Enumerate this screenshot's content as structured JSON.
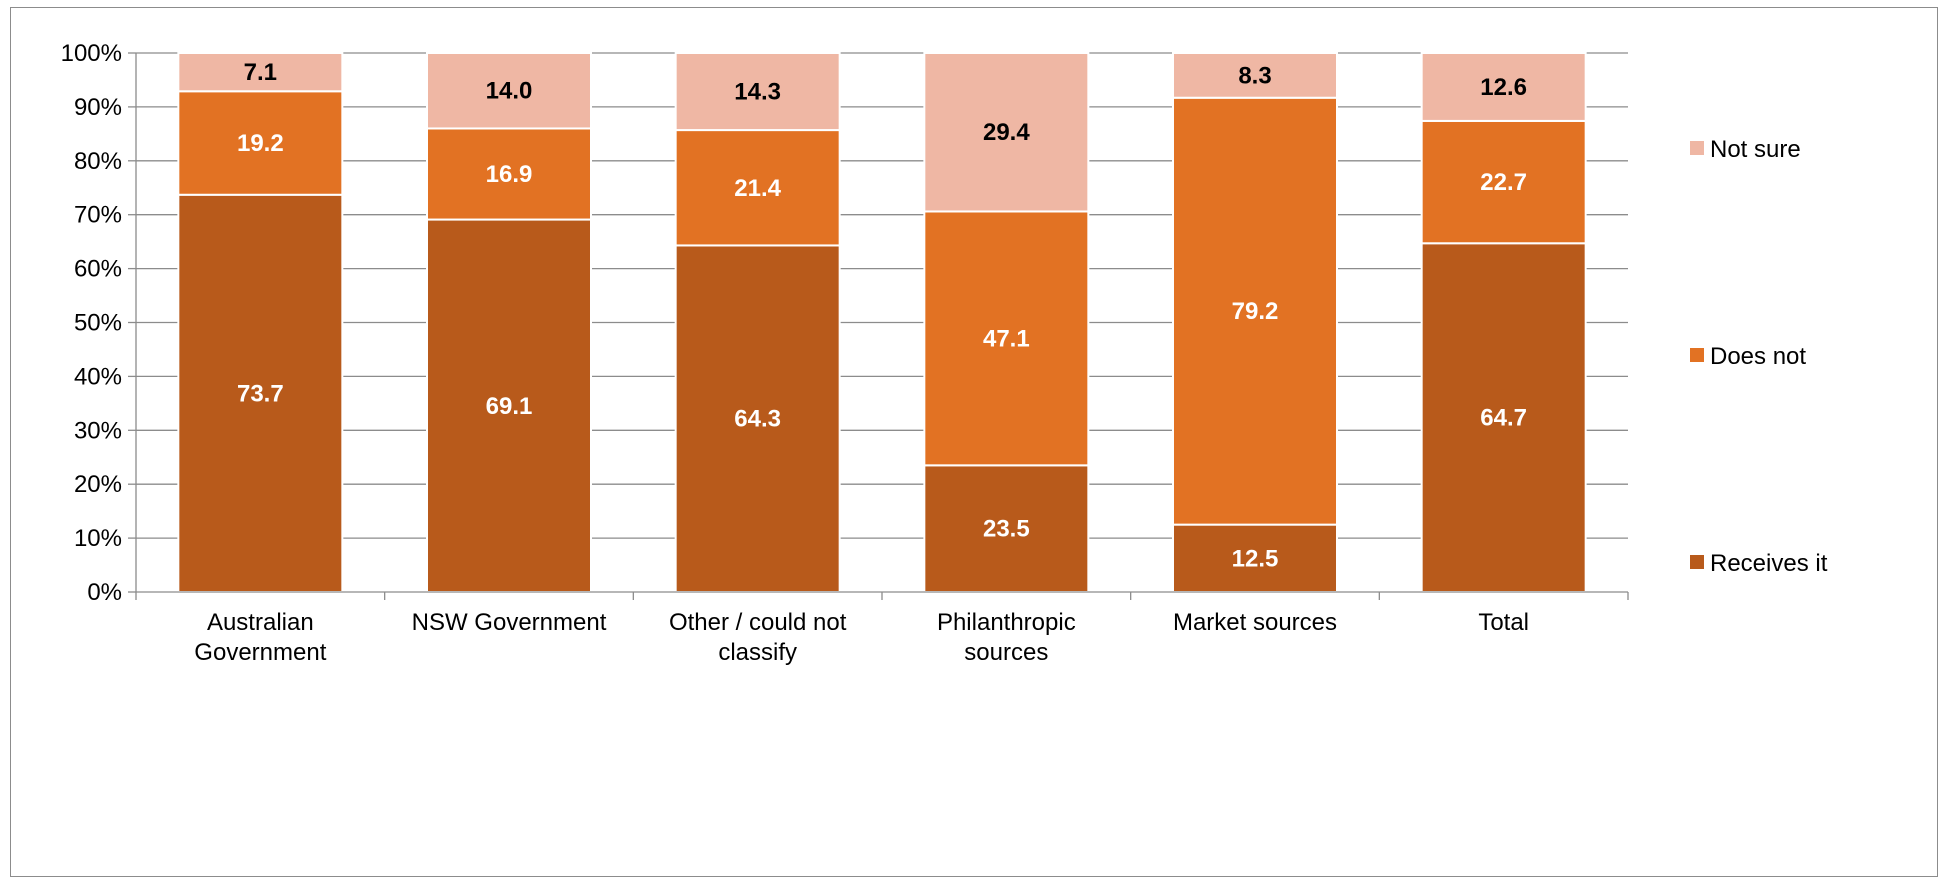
{
  "chart_data": {
    "type": "bar",
    "stacked": true,
    "categories": [
      [
        "Australian",
        "Government"
      ],
      [
        "NSW Government"
      ],
      [
        "Other / could not",
        "classify"
      ],
      [
        "Philanthropic",
        "sources"
      ],
      [
        "Market sources"
      ],
      [
        "Total"
      ]
    ],
    "series": [
      {
        "name": "Receives it",
        "color": "#b85a1b",
        "label_color": "#ffffff",
        "values": [
          73.7,
          69.1,
          64.3,
          23.5,
          12.5,
          64.7
        ]
      },
      {
        "name": "Does not",
        "color": "#e27223",
        "label_color": "#ffffff",
        "values": [
          19.2,
          16.9,
          21.4,
          47.1,
          79.2,
          22.7
        ]
      },
      {
        "name": "Not sure",
        "color": "#efb7a4",
        "label_color": "#000000",
        "values": [
          7.1,
          14.0,
          14.3,
          29.4,
          8.3,
          12.6
        ]
      }
    ],
    "y_ticks": [
      "0%",
      "10%",
      "20%",
      "30%",
      "40%",
      "50%",
      "60%",
      "70%",
      "80%",
      "90%",
      "100%"
    ],
    "ylim": [
      0,
      100
    ],
    "grid": true,
    "legend_position": "right",
    "legend_order": [
      "Not sure",
      "Does not",
      "Receives it"
    ],
    "title": "",
    "xlabel": "",
    "ylabel": ""
  }
}
